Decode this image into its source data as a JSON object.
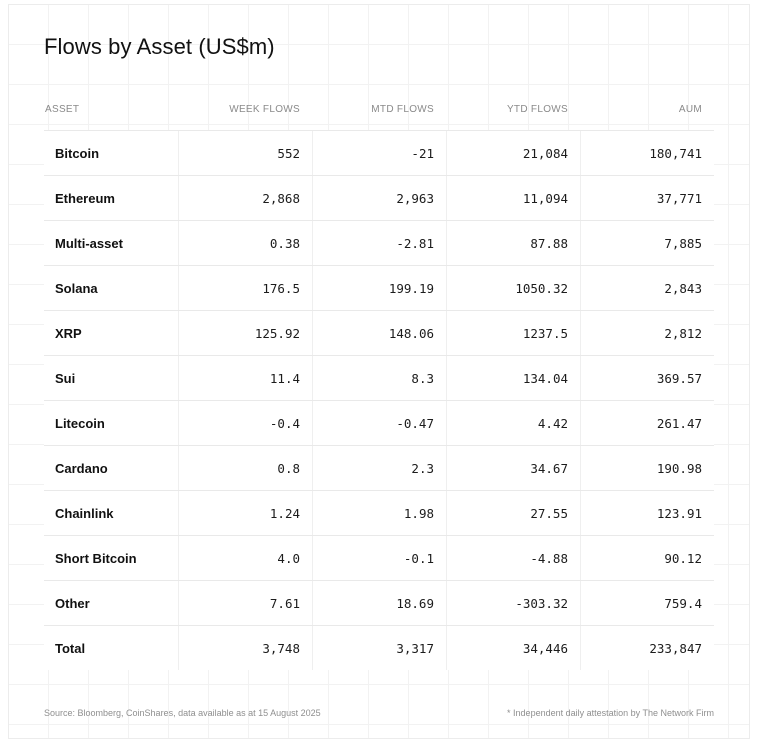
{
  "chart_data": {
    "type": "table",
    "title": "Flows by Asset (US$m)",
    "columns": [
      "ASSET",
      "WEEK FLOWS",
      "MTD FLOWS",
      "YTD FLOWS",
      "AUM"
    ],
    "rows": [
      [
        "Bitcoin",
        "552",
        "-21",
        "21,084",
        "180,741"
      ],
      [
        "Ethereum",
        "2,868",
        "2,963",
        "11,094",
        "37,771"
      ],
      [
        "Multi-asset",
        "0.38",
        "-2.81",
        "87.88",
        "7,885"
      ],
      [
        "Solana",
        "176.5",
        "199.19",
        "1050.32",
        "2,843"
      ],
      [
        "XRP",
        "125.92",
        "148.06",
        "1237.5",
        "2,812"
      ],
      [
        "Sui",
        "11.4",
        "8.3",
        "134.04",
        "369.57"
      ],
      [
        "Litecoin",
        "-0.4",
        "-0.47",
        "4.42",
        "261.47"
      ],
      [
        "Cardano",
        "0.8",
        "2.3",
        "34.67",
        "190.98"
      ],
      [
        "Chainlink",
        "1.24",
        "1.98",
        "27.55",
        "123.91"
      ],
      [
        "Short Bitcoin",
        "4.0",
        "-0.1",
        "-4.88",
        "90.12"
      ],
      [
        "Other",
        "7.61",
        "18.69",
        "-303.32",
        "759.4"
      ],
      [
        "Total",
        "3,748",
        "3,317",
        "34,446",
        "233,847"
      ]
    ]
  },
  "footer": {
    "source": "Source: Bloomberg, CoinShares, data available as at 15 August 2025",
    "attestation": "* Independent daily attestation by The Network Firm"
  }
}
